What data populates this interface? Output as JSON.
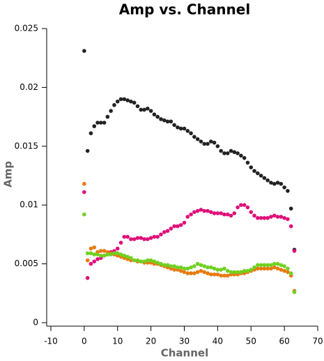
{
  "chart_data": {
    "type": "scatter",
    "title": "Amp vs. Channel",
    "x_label": "Channel",
    "y_label": "Amp",
    "x": [
      0,
      1,
      2,
      3,
      4,
      5,
      6,
      7,
      8,
      9,
      10,
      11,
      12,
      13,
      14,
      15,
      16,
      17,
      18,
      19,
      20,
      21,
      22,
      23,
      24,
      25,
      26,
      27,
      28,
      29,
      30,
      31,
      32,
      33,
      34,
      35,
      36,
      37,
      38,
      39,
      40,
      41,
      42,
      43,
      44,
      45,
      46,
      47,
      48,
      49,
      50,
      51,
      52,
      53,
      54,
      55,
      56,
      57,
      58,
      59,
      60,
      61,
      62,
      63
    ],
    "series": [
      {
        "color": "#222222",
        "values": [
          0.0231,
          0.0146,
          0.0161,
          0.0167,
          0.017,
          0.017,
          0.017,
          0.0175,
          0.018,
          0.0185,
          0.0188,
          0.019,
          0.019,
          0.0189,
          0.0188,
          0.0187,
          0.0184,
          0.0181,
          0.0181,
          0.0182,
          0.018,
          0.0177,
          0.0175,
          0.0173,
          0.0172,
          0.0171,
          0.0171,
          0.0168,
          0.0166,
          0.0165,
          0.0165,
          0.0163,
          0.0161,
          0.0158,
          0.0156,
          0.0154,
          0.0152,
          0.0152,
          0.0154,
          0.0153,
          0.015,
          0.0146,
          0.0144,
          0.0144,
          0.0146,
          0.0145,
          0.0144,
          0.0142,
          0.014,
          0.0136,
          0.0132,
          0.0129,
          0.0127,
          0.0125,
          0.0123,
          0.0121,
          0.0119,
          0.0118,
          0.0119,
          0.0118,
          0.0115,
          0.0112,
          0.0097,
          0.0062
        ]
      },
      {
        "color": "#e0107a",
        "values": [
          0.0111,
          0.0038,
          0.005,
          0.0052,
          0.0054,
          0.0055,
          0.0057,
          0.0058,
          0.006,
          0.0061,
          0.0063,
          0.0068,
          0.0073,
          0.0073,
          0.0071,
          0.0071,
          0.0072,
          0.0072,
          0.0071,
          0.0071,
          0.0072,
          0.0073,
          0.0073,
          0.0075,
          0.0077,
          0.0078,
          0.008,
          0.0082,
          0.0082,
          0.0083,
          0.0085,
          0.009,
          0.0092,
          0.0094,
          0.0095,
          0.0096,
          0.0095,
          0.0095,
          0.0094,
          0.0093,
          0.0093,
          0.0093,
          0.0092,
          0.0092,
          0.0091,
          0.0093,
          0.0098,
          0.01,
          0.01,
          0.0098,
          0.0094,
          0.0091,
          0.0089,
          0.0089,
          0.0089,
          0.0089,
          0.009,
          0.0091,
          0.009,
          0.009,
          0.0089,
          0.0088,
          0.0082,
          0.0061
        ]
      },
      {
        "color": "#e87a10",
        "values": [
          0.0118,
          0.0053,
          0.0063,
          0.0064,
          0.006,
          0.0061,
          0.0061,
          0.006,
          0.0059,
          0.0058,
          0.0057,
          0.0056,
          0.0055,
          0.0054,
          0.0053,
          0.0053,
          0.0052,
          0.0052,
          0.0051,
          0.0051,
          0.0051,
          0.005,
          0.005,
          0.0049,
          0.0048,
          0.0047,
          0.0046,
          0.0045,
          0.0045,
          0.0044,
          0.0043,
          0.0042,
          0.0042,
          0.0042,
          0.0043,
          0.0044,
          0.0043,
          0.0042,
          0.0041,
          0.0041,
          0.0041,
          0.004,
          0.004,
          0.004,
          0.0041,
          0.0041,
          0.0041,
          0.0042,
          0.0042,
          0.0043,
          0.0044,
          0.0045,
          0.0046,
          0.0046,
          0.0046,
          0.0046,
          0.0046,
          0.0047,
          0.0046,
          0.0045,
          0.0044,
          0.0043,
          0.004,
          0.0027
        ]
      },
      {
        "color": "#70d020",
        "values": [
          0.0092,
          0.0059,
          0.0059,
          0.0058,
          0.0058,
          0.0057,
          0.0057,
          0.0058,
          0.0058,
          0.0059,
          0.0059,
          0.0058,
          0.0057,
          0.0056,
          0.0055,
          0.0053,
          0.0053,
          0.0052,
          0.0052,
          0.0053,
          0.0053,
          0.0052,
          0.0051,
          0.005,
          0.0049,
          0.0049,
          0.0048,
          0.0048,
          0.0047,
          0.0047,
          0.0046,
          0.0046,
          0.0047,
          0.0048,
          0.005,
          0.0049,
          0.0048,
          0.0047,
          0.0047,
          0.0046,
          0.0045,
          0.0045,
          0.0046,
          0.0044,
          0.0043,
          0.0043,
          0.0043,
          0.0043,
          0.0044,
          0.0044,
          0.0045,
          0.0047,
          0.0049,
          0.0049,
          0.0049,
          0.0049,
          0.0049,
          0.005,
          0.005,
          0.0049,
          0.0048,
          0.0046,
          0.0042,
          0.0026
        ]
      }
    ],
    "xlim": [
      -10,
      70
    ],
    "xticks": [
      -10,
      0,
      10,
      20,
      30,
      40,
      50,
      60,
      70
    ],
    "ylim": [
      0,
      0.025
    ],
    "yticks": [
      0,
      0.005,
      0.01,
      0.015,
      0.02,
      0.025
    ]
  }
}
